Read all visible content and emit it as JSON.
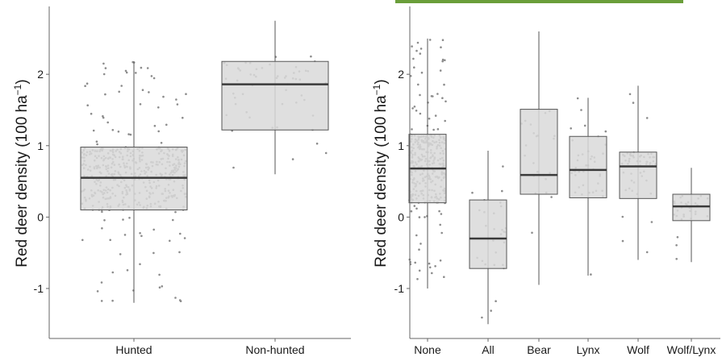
{
  "colors": {
    "box_fill": "#d9d9d9",
    "box_stroke": "#555555",
    "median": "#3a3a3a",
    "points": "#8c8c8c",
    "axis": "#666666",
    "accent_bar": "#6a9e3a"
  },
  "chart_data": [
    {
      "type": "box",
      "title": "",
      "xlabel": "",
      "ylabel_text": "Red deer density (100 ha",
      "ylabel_sup": "−1",
      "ylabel_close": ")",
      "ylim": [
        -1.7,
        2.95
      ],
      "yticks": [
        {
          "value": -1,
          "label": "-1"
        },
        {
          "value": 0,
          "label": "0"
        },
        {
          "value": 1,
          "label": "1"
        },
        {
          "value": 2,
          "label": "2"
        }
      ],
      "grid": false,
      "categories": [
        "Hunted",
        "Non-hunted"
      ],
      "boxes": [
        {
          "category": "Hunted",
          "whisker_low": -1.2,
          "q1": 0.1,
          "median": 0.55,
          "q3": 0.98,
          "whisker_high": 2.18,
          "n_points": 480
        },
        {
          "category": "Non-hunted",
          "whisker_low": 0.6,
          "q1": 1.22,
          "median": 1.86,
          "q3": 2.18,
          "whisker_high": 2.75,
          "n_points": 55
        }
      ]
    },
    {
      "type": "box",
      "title": "",
      "xlabel": "",
      "ylabel_text": "Red deer density (100 ha",
      "ylabel_sup": "−1",
      "ylabel_close": ")",
      "ylim": [
        -1.7,
        2.95
      ],
      "yticks": [
        {
          "value": -1,
          "label": "-1"
        },
        {
          "value": 0,
          "label": "0"
        },
        {
          "value": 1,
          "label": "1"
        },
        {
          "value": 2,
          "label": "2"
        }
      ],
      "grid": false,
      "categories": [
        "None",
        "All",
        "Bear",
        "Lynx",
        "Wolf",
        "Wolf/Lynx"
      ],
      "boxes": [
        {
          "category": "None",
          "whisker_low": -1.0,
          "q1": 0.2,
          "median": 0.68,
          "q3": 1.16,
          "whisker_high": 2.5,
          "n_points": 320
        },
        {
          "category": "All",
          "whisker_low": -1.5,
          "q1": -0.72,
          "median": -0.3,
          "q3": 0.24,
          "whisker_high": 0.93,
          "n_points": 28
        },
        {
          "category": "Bear",
          "whisker_low": -0.95,
          "q1": 0.32,
          "median": 0.59,
          "q3": 1.51,
          "whisker_high": 2.6,
          "n_points": 22
        },
        {
          "category": "Lynx",
          "whisker_low": -0.82,
          "q1": 0.27,
          "median": 0.66,
          "q3": 1.13,
          "whisker_high": 1.67,
          "n_points": 40
        },
        {
          "category": "Wolf",
          "whisker_low": -0.6,
          "q1": 0.26,
          "median": 0.71,
          "q3": 0.91,
          "whisker_high": 1.84,
          "n_points": 60
        },
        {
          "category": "Wolf/Lynx",
          "whisker_low": -0.63,
          "q1": -0.05,
          "median": 0.15,
          "q3": 0.32,
          "whisker_high": 0.69,
          "n_points": 30
        }
      ]
    }
  ]
}
